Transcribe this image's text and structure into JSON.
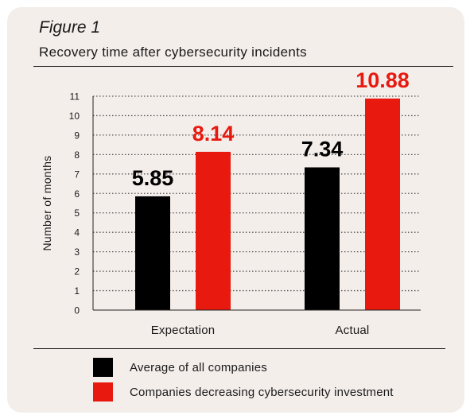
{
  "figure": {
    "label": "Figure 1",
    "subtitle": "Recovery time after cybersecurity incidents"
  },
  "chart_data": {
    "type": "bar",
    "categories": [
      "Expectation",
      "Actual"
    ],
    "series": [
      {
        "name": "Average of all companies",
        "values": [
          5.85,
          7.34
        ],
        "color": "#000000"
      },
      {
        "name": "Companies decreasing cybersecurity investment",
        "values": [
          8.14,
          10.88
        ],
        "color": "#e8190f"
      }
    ],
    "ylabel": "Number of months",
    "xlabel": "",
    "ylim": [
      0,
      11
    ],
    "yticks": [
      0,
      1,
      2,
      3,
      4,
      5,
      6,
      7,
      8,
      9,
      10,
      11
    ],
    "grid": "dotted horizontal",
    "data_labels": [
      "5.85",
      "7.34",
      "8.14",
      "10.88"
    ],
    "legend_position": "bottom"
  }
}
